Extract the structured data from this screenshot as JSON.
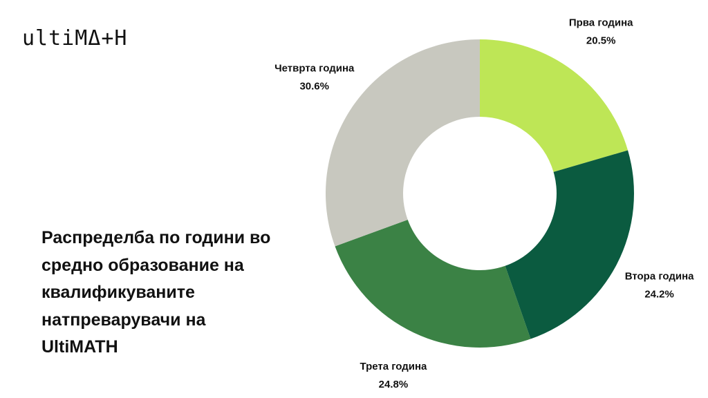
{
  "logo": "ultiMΔ+H",
  "chart_data": {
    "type": "pie",
    "donut": true,
    "title": "Распределба по години во средно образование на квалификуваните натпреварувачи на UltiMATH",
    "categories": [
      "Прва година",
      "Втора година",
      "Трета година",
      "Четврта година"
    ],
    "values": [
      20.5,
      24.2,
      24.8,
      30.6
    ],
    "value_labels": [
      "20.5%",
      "24.2%",
      "24.8%",
      "30.6%"
    ],
    "colors": [
      "#bee656",
      "#0b5b40",
      "#3b8245",
      "#c8c8bf"
    ]
  }
}
